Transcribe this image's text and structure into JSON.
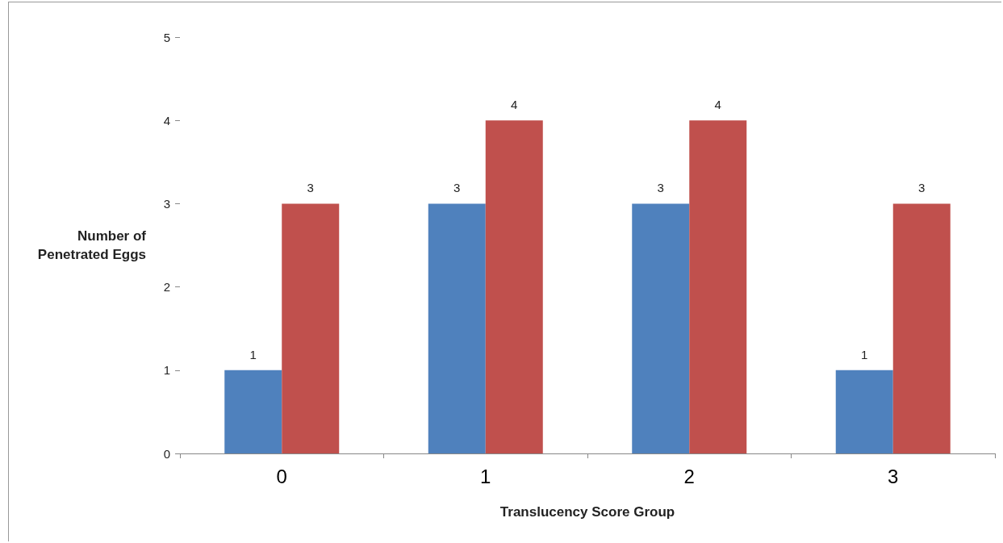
{
  "chart_data": {
    "type": "bar",
    "xlabel": "Translucency Score Group",
    "ylabel": "Number of Penetrated Eggs",
    "categories": [
      "0",
      "1",
      "2",
      "3"
    ],
    "series": [
      {
        "color": "#4f81bd",
        "values": [
          1,
          3,
          3,
          1
        ]
      },
      {
        "color": "#c0504d",
        "values": [
          3,
          4,
          4,
          3
        ]
      }
    ],
    "ylim": [
      0,
      5
    ],
    "yticks": [
      0,
      1,
      2,
      3,
      4,
      5
    ],
    "grid": false,
    "data_labels": true
  }
}
